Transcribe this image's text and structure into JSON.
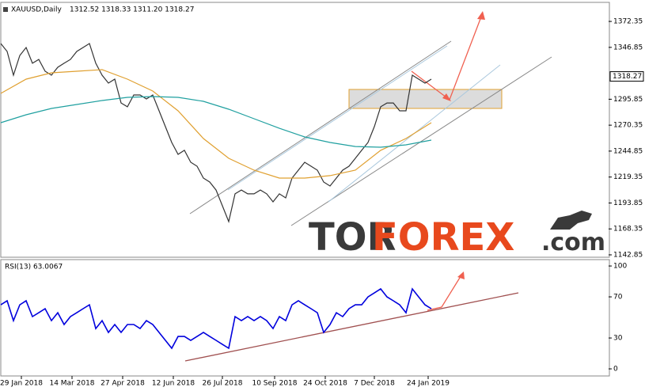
{
  "chart_data": [
    {
      "type": "line",
      "title": "XAUUSD,Daily",
      "subtitle": "1312.52 1318.33 1311.20 1318.27",
      "xlim": [
        0,
        384
      ],
      "ylim": [
        1140.5,
        1390.3
      ],
      "yticks": [
        1142.85,
        1168.35,
        1193.85,
        1219.35,
        1244.85,
        1270.35,
        1295.85,
        1346.85,
        1372.35
      ],
      "last_price": 1318.27,
      "series": [
        {
          "color": "#333333",
          "x": [
            0,
            4,
            8,
            12,
            16,
            20,
            24,
            28,
            32,
            36,
            40,
            44,
            48,
            52,
            56,
            60,
            64,
            68,
            72,
            76,
            80,
            84,
            88,
            92,
            96,
            100,
            104,
            108,
            112,
            116,
            120,
            124,
            128,
            132,
            136,
            140,
            144,
            148,
            152,
            156,
            160,
            164,
            168,
            172,
            176,
            180,
            184,
            188,
            192,
            196,
            200,
            204,
            208,
            212,
            216,
            220,
            224,
            228,
            232,
            236,
            240,
            244,
            248,
            252,
            256,
            260,
            264,
            268,
            272
          ],
          "values": [
            1350.6,
            1342.8,
            1319.5,
            1338.9,
            1346.7,
            1331.2,
            1335.0,
            1323.4,
            1319.5,
            1327.3,
            1331.2,
            1335.0,
            1342.8,
            1346.7,
            1350.6,
            1331.2,
            1319.5,
            1311.7,
            1315.6,
            1292.2,
            1288.4,
            1300.0,
            1300.0,
            1296.1,
            1300.0,
            1284.5,
            1268.9,
            1253.3,
            1241.7,
            1245.6,
            1233.9,
            1230.0,
            1218.3,
            1214.4,
            1206.6,
            1191.1,
            1175.5,
            1202.8,
            1206.6,
            1202.8,
            1202.8,
            1206.6,
            1202.8,
            1195.0,
            1202.8,
            1198.9,
            1218.3,
            1226.1,
            1233.9,
            1230.0,
            1226.1,
            1214.4,
            1210.5,
            1218.3,
            1226.1,
            1230.0,
            1237.8,
            1245.6,
            1253.3,
            1268.9,
            1288.4,
            1292.2,
            1292.2,
            1284.5,
            1284.5,
            1319.5,
            1315.6,
            1311.7,
            1315.6
          ]
        },
        {
          "color": "#e0a030",
          "x": [
            0,
            16,
            32,
            48,
            64,
            80,
            96,
            112,
            128,
            144,
            160,
            176,
            192,
            208,
            224,
            240,
            256,
            272
          ],
          "values": [
            1301.6,
            1315.6,
            1321.8,
            1323.4,
            1324.9,
            1315.6,
            1303.9,
            1284.5,
            1257.2,
            1237.8,
            1226.1,
            1218.3,
            1218.3,
            1220.7,
            1226.1,
            1245.6,
            1257.2,
            1272.8
          ]
        },
        {
          "color": "#20a0a0",
          "x": [
            0,
            16,
            32,
            48,
            64,
            80,
            96,
            112,
            128,
            144,
            160,
            176,
            192,
            208,
            224,
            240,
            256,
            272
          ],
          "values": [
            1272.8,
            1280.6,
            1286.8,
            1290.7,
            1294.6,
            1297.7,
            1298.5,
            1297.7,
            1293.8,
            1286.0,
            1276.7,
            1267.3,
            1258.8,
            1253.3,
            1249.4,
            1248.7,
            1251.0,
            1255.7
          ]
        }
      ]
    },
    {
      "type": "line",
      "title": "RSI(13) 63.0067",
      "xlim": [
        0,
        384
      ],
      "ylim": [
        -6.9,
        106.2
      ],
      "yticks": [
        0,
        30,
        70,
        100
      ],
      "xticks": [
        {
          "value": 13,
          "label": "29 Jan 2018"
        },
        {
          "value": 45,
          "label": "14 Mar 2018"
        },
        {
          "value": 77,
          "label": "27 Apr 2018"
        },
        {
          "value": 109,
          "label": "12 Jun 2018"
        },
        {
          "value": 140,
          "label": "26 Jul 2018"
        },
        {
          "value": 173,
          "label": "10 Sep 2018"
        },
        {
          "value": 205,
          "label": "24 Oct 2018"
        },
        {
          "value": 236,
          "label": "7 Dec 2018"
        },
        {
          "value": 270,
          "label": "24 Jan 2019"
        }
      ],
      "series": [
        {
          "color": "#0000dd",
          "x": [
            0,
            4,
            8,
            12,
            16,
            20,
            24,
            28,
            32,
            36,
            40,
            44,
            48,
            52,
            56,
            60,
            64,
            68,
            72,
            76,
            80,
            84,
            88,
            92,
            96,
            100,
            104,
            108,
            112,
            116,
            120,
            124,
            128,
            132,
            136,
            140,
            144,
            148,
            152,
            156,
            160,
            164,
            168,
            172,
            176,
            180,
            184,
            188,
            192,
            196,
            200,
            204,
            208,
            212,
            216,
            220,
            224,
            228,
            232,
            236,
            240,
            244,
            248,
            252,
            256,
            260,
            264,
            268,
            272
          ],
          "values": [
            62.3,
            66.2,
            46.9,
            62.3,
            66.2,
            50.8,
            54.6,
            58.5,
            46.9,
            54.6,
            43.1,
            50.8,
            54.6,
            58.5,
            62.3,
            39.2,
            46.9,
            35.4,
            43.1,
            35.4,
            43.1,
            43.1,
            39.2,
            46.9,
            43.1,
            35.4,
            27.7,
            20.0,
            31.5,
            31.5,
            27.7,
            31.5,
            35.4,
            31.5,
            27.7,
            23.8,
            20.0,
            50.8,
            46.9,
            50.8,
            46.9,
            50.8,
            46.9,
            39.2,
            50.8,
            46.9,
            62.3,
            66.2,
            62.3,
            58.5,
            54.6,
            35.4,
            43.1,
            54.6,
            50.8,
            58.5,
            62.3,
            62.3,
            70.0,
            73.8,
            77.7,
            70.0,
            66.2,
            62.3,
            54.6,
            77.7,
            70.0,
            62.3,
            58.5
          ]
        }
      ]
    }
  ],
  "watermark": {
    "part1": "TOR",
    "part2": "FOREX",
    "part3": ".com"
  }
}
